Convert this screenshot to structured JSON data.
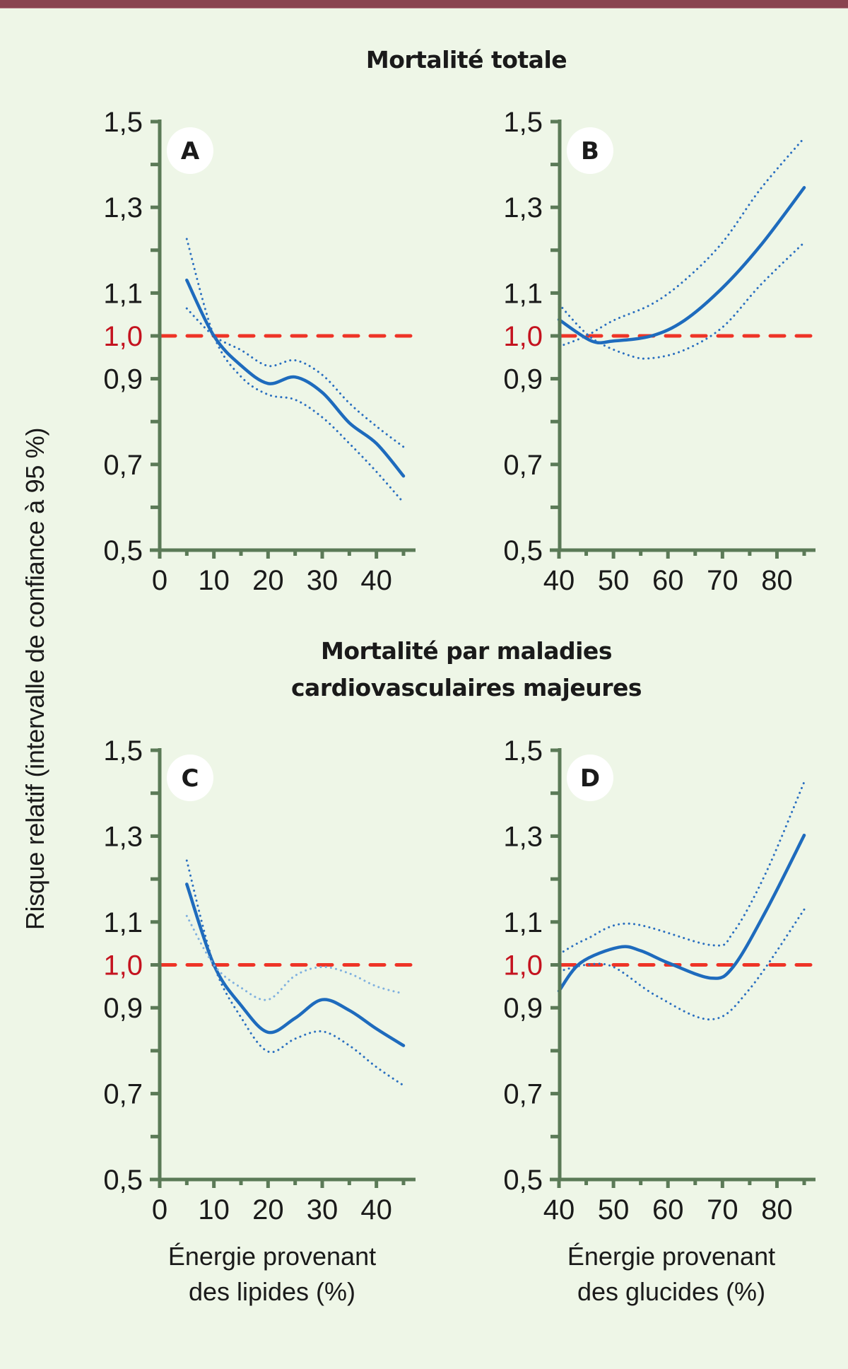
{
  "colors": {
    "background": "#eef6e7",
    "top_bar": "#8a4450",
    "axis": "#5b7a57",
    "estimate_line": "#1e6bbd",
    "ci_dark": "#2a6fc0",
    "ci_light": "#7fb0df",
    "reference_line": "#ee3427",
    "reference_label": "#c4131f"
  },
  "titles": {
    "top": "Mortalité totale",
    "bottom_line1": "Mortalité par maladies",
    "bottom_line2": "cardiovasculaires majeures"
  },
  "y_axis_label": "Risque relatif (intervalle de confiance à 95 %)",
  "x_axis_labels": {
    "lipides_line1": "Énergie provenant",
    "lipides_line2": "des lipides (%)",
    "glucides_line1": "Énergie provenant",
    "glucides_line2": "des glucides (%)"
  },
  "chart_data": [
    {
      "type": "line",
      "panel": "A",
      "group_title": "Mortalité totale",
      "xlabel": "Énergie provenant des lipides (%)",
      "ylabel": "Risque relatif (intervalle de confiance à 95 %)",
      "xlim": [
        0,
        45
      ],
      "ylim": [
        0.5,
        1.5
      ],
      "x_ticks": [
        0,
        10,
        20,
        30,
        40
      ],
      "x_minor_ticks": [
        5,
        15,
        25,
        35,
        45
      ],
      "y_ticks": [
        1.5,
        1.3,
        1.1,
        1.0,
        0.9,
        0.7,
        0.5
      ],
      "y_tick_labels": [
        "1,5",
        "1,3",
        "1,1",
        "1,0",
        "0,9",
        "0,7",
        "0,5"
      ],
      "y_minor_ticks": [
        1.4,
        1.2,
        0.8,
        0.6
      ],
      "x_tick_labels": [
        "0",
        "10",
        "20",
        "30",
        "40"
      ],
      "reference_line": 1.0,
      "grid": false,
      "series": [
        {
          "name": "Risque relatif",
          "style": "solid",
          "x": [
            5,
            10,
            15,
            20,
            25,
            30,
            35,
            40,
            45
          ],
          "y": [
            1.13,
            1.0,
            0.931,
            0.889,
            0.904,
            0.868,
            0.797,
            0.749,
            0.673
          ]
        },
        {
          "name": "IC 95 % (borne 1)",
          "style": "dotted",
          "x": [
            5,
            10,
            15,
            20,
            25,
            30,
            35,
            40,
            45
          ],
          "y": [
            1.226,
            1.0,
            0.905,
            0.863,
            0.851,
            0.81,
            0.749,
            0.683,
            0.611
          ]
        },
        {
          "name": "IC 95 % (borne 2)",
          "style": "dotted",
          "x": [
            5,
            10,
            15,
            20,
            25,
            30,
            35,
            40,
            45
          ],
          "y": [
            1.064,
            1.0,
            0.967,
            0.93,
            0.943,
            0.909,
            0.843,
            0.789,
            0.741
          ]
        }
      ]
    },
    {
      "type": "line",
      "panel": "B",
      "group_title": "Mortalité totale",
      "xlabel": "Énergie provenant des glucides (%)",
      "ylabel": "Risque relatif (intervalle de confiance à 95 %)",
      "xlim": [
        40,
        85
      ],
      "ylim": [
        0.5,
        1.5
      ],
      "x_ticks": [
        40,
        50,
        60,
        70,
        80
      ],
      "x_minor_ticks": [
        45,
        55,
        65,
        75,
        85
      ],
      "y_ticks": [
        1.5,
        1.3,
        1.1,
        1.0,
        0.9,
        0.7,
        0.5
      ],
      "y_tick_labels": [
        "1,5",
        "1,3",
        "1,1",
        "1,0",
        "0,9",
        "0,7",
        "0,5"
      ],
      "y_minor_ticks": [
        1.4,
        1.2,
        0.8,
        0.6
      ],
      "x_tick_labels": [
        "40",
        "50",
        "60",
        "70",
        "80"
      ],
      "reference_line": 1.0,
      "grid": false,
      "series": [
        {
          "name": "Risque relatif",
          "style": "solid",
          "x": [
            40,
            46,
            50,
            57,
            63,
            70,
            77,
            85
          ],
          "y": [
            1.038,
            0.988,
            0.988,
            1.0,
            1.036,
            1.112,
            1.211,
            1.346
          ]
        },
        {
          "name": "IC 95 % (borne 1)",
          "style": "dotted",
          "x": [
            40,
            46,
            53,
            57,
            63,
            70,
            77,
            85
          ],
          "y": [
            1.074,
            0.995,
            0.954,
            0.948,
            0.967,
            1.02,
            1.119,
            1.218
          ]
        },
        {
          "name": "IC 95 % (borne 2)",
          "style": "dotted",
          "x": [
            40,
            45,
            50,
            57,
            63,
            70,
            77,
            85
          ],
          "y": [
            0.975,
            1.0,
            1.036,
            1.074,
            1.129,
            1.218,
            1.343,
            1.462
          ]
        }
      ]
    },
    {
      "type": "line",
      "panel": "C",
      "group_title": "Mortalité par maladies cardiovasculaires majeures",
      "xlabel": "Énergie provenant des lipides (%)",
      "ylabel": "Risque relatif (intervalle de confiance à 95 %)",
      "xlim": [
        0,
        45
      ],
      "ylim": [
        0.5,
        1.5
      ],
      "x_ticks": [
        0,
        10,
        20,
        30,
        40
      ],
      "x_minor_ticks": [
        5,
        15,
        25,
        35,
        45
      ],
      "y_ticks": [
        1.5,
        1.3,
        1.1,
        1.0,
        0.9,
        0.7,
        0.5
      ],
      "y_tick_labels": [
        "1,5",
        "1,3",
        "1,1",
        "1,0",
        "0,9",
        "0,7",
        "0,5"
      ],
      "y_minor_ticks": [
        1.4,
        1.2,
        0.8,
        0.6
      ],
      "x_tick_labels": [
        "0",
        "10",
        "20",
        "30",
        "40"
      ],
      "reference_line": 1.0,
      "grid": false,
      "series": [
        {
          "name": "Risque relatif",
          "style": "solid",
          "x": [
            5,
            10,
            15,
            20,
            25,
            30,
            35,
            40,
            45
          ],
          "y": [
            1.188,
            1.0,
            0.906,
            0.843,
            0.876,
            0.919,
            0.894,
            0.851,
            0.812
          ]
        },
        {
          "name": "IC 95 % (borne 1)",
          "style": "dotted",
          "x": [
            5,
            10,
            15,
            20,
            25,
            30,
            35,
            40,
            45
          ],
          "y": [
            1.243,
            1.0,
            0.878,
            0.798,
            0.828,
            0.845,
            0.812,
            0.762,
            0.719
          ]
        },
        {
          "name": "IC 95 % (borne 2)",
          "style": "dotted-light",
          "x": [
            5,
            10,
            15,
            20,
            25,
            30,
            35,
            40,
            45
          ],
          "y": [
            1.114,
            1.0,
            0.947,
            0.919,
            0.975,
            0.995,
            0.98,
            0.95,
            0.933
          ]
        }
      ]
    },
    {
      "type": "line",
      "panel": "D",
      "group_title": "Mortalité par maladies cardiovasculaires majeures",
      "xlabel": "Énergie provenant des glucides (%)",
      "ylabel": "Risque relatif (intervalle de confiance à 95 %)",
      "xlim": [
        40,
        85
      ],
      "ylim": [
        0.5,
        1.5
      ],
      "x_ticks": [
        40,
        50,
        60,
        70,
        80
      ],
      "x_minor_ticks": [
        45,
        55,
        65,
        75,
        85
      ],
      "y_ticks": [
        1.5,
        1.3,
        1.1,
        1.0,
        0.9,
        0.7,
        0.5
      ],
      "y_tick_labels": [
        "1,5",
        "1,3",
        "1,1",
        "1,0",
        "0,9",
        "0,7",
        "0,5"
      ],
      "y_minor_ticks": [
        1.4,
        1.2,
        0.8,
        0.6
      ],
      "x_tick_labels": [
        "40",
        "50",
        "60",
        "70",
        "80"
      ],
      "reference_line": 1.0,
      "grid": false,
      "series": [
        {
          "name": "Risque relatif",
          "style": "solid",
          "x": [
            40,
            44,
            51,
            55,
            60,
            68,
            72,
            78,
            85
          ],
          "y": [
            0.939,
            1.005,
            1.041,
            1.033,
            1.005,
            0.969,
            0.996,
            1.126,
            1.302
          ]
        },
        {
          "name": "IC 95 % (borne 1)",
          "style": "dotted",
          "x": [
            40,
            45,
            50,
            58,
            68,
            75,
            85
          ],
          "y": [
            0.985,
            1.0,
            0.995,
            0.927,
            0.873,
            0.944,
            1.129
          ]
        },
        {
          "name": "IC 95 % (borne 2)",
          "style": "dotted",
          "x": [
            40,
            45,
            53,
            68,
            72,
            78,
            85
          ],
          "y": [
            1.025,
            1.06,
            1.096,
            1.046,
            1.076,
            1.215,
            1.426
          ]
        }
      ]
    }
  ]
}
